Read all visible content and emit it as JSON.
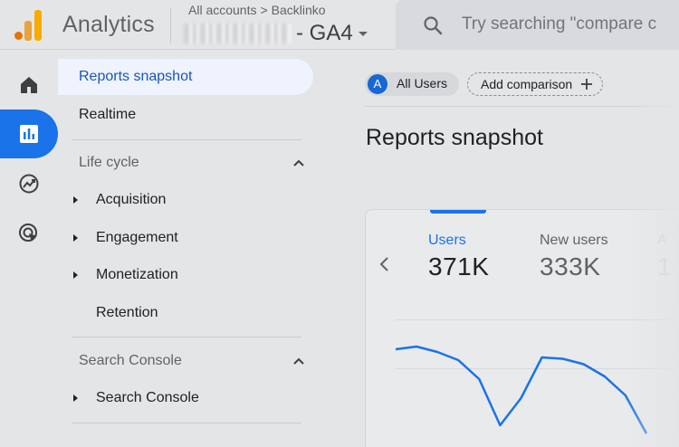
{
  "header": {
    "app_name": "Analytics",
    "breadcrumb_root": "All accounts",
    "breadcrumb_sep": ">",
    "breadcrumb_account": "Backlinko",
    "property_name": "- GA4",
    "search_placeholder": "Try searching \"compare c"
  },
  "rail": {
    "items": [
      "home",
      "reports",
      "explore",
      "advertising"
    ],
    "active": "reports"
  },
  "nav": {
    "reports_snapshot": "Reports snapshot",
    "realtime": "Realtime",
    "life_cycle": "Life cycle",
    "acquisition": "Acquisition",
    "engagement": "Engagement",
    "monetization": "Monetization",
    "retention": "Retention",
    "search_console_section": "Search Console",
    "search_console_item": "Search Console"
  },
  "main": {
    "all_users_avatar": "A",
    "all_users": "All Users",
    "add_comparison": "Add comparison",
    "title": "Reports snapshot"
  },
  "card": {
    "metrics": [
      {
        "label": "Users",
        "value": "371K"
      },
      {
        "label": "New users",
        "value": "333K"
      },
      {
        "label": "A",
        "value": "1"
      }
    ]
  },
  "chart_data": {
    "type": "line",
    "series": [
      {
        "values": [
          0.84,
          0.86,
          0.82,
          0.76,
          0.62,
          0.28,
          0.48,
          0.78,
          0.77,
          0.73,
          0.64,
          0.5,
          0.22
        ]
      }
    ],
    "ylim": [
      0,
      1
    ],
    "grid": true,
    "colors": {
      "series": "#1a73e8"
    }
  },
  "colors": {
    "accent": "#1a73e8",
    "selected_bg": "#eef3fd",
    "background": "#e4e5e7"
  }
}
